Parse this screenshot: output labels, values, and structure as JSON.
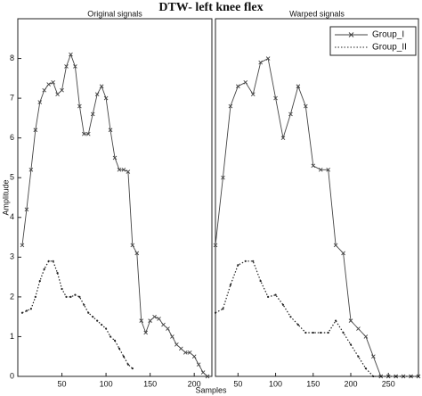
{
  "title": "DTW- left knee flex",
  "x_label": "Samples",
  "chart_data": [
    {
      "type": "line",
      "title": "Original signals",
      "ylabel": "Amplitude",
      "x": [
        5,
        10,
        15,
        20,
        25,
        30,
        35,
        40,
        45,
        50,
        55,
        60,
        65,
        70,
        75,
        80,
        85,
        90,
        95,
        100,
        105,
        110,
        115,
        120,
        125,
        130,
        135,
        140,
        145,
        150,
        155,
        160,
        165,
        170,
        175,
        180,
        185,
        190,
        195,
        200,
        205,
        210,
        215
      ],
      "xlim": [
        0,
        220
      ],
      "xticks": [
        50,
        100,
        150,
        200
      ],
      "ylim": [
        0,
        9
      ],
      "yticks": [
        0,
        1,
        2,
        3,
        4,
        5,
        6,
        7,
        8
      ],
      "series": [
        {
          "color": "#444444",
          "marker": "x",
          "dash": "solid",
          "values": [
            3.3,
            4.2,
            5.2,
            6.2,
            6.9,
            7.2,
            7.35,
            7.4,
            7.1,
            7.2,
            7.8,
            8.1,
            7.8,
            6.8,
            6.1,
            6.1,
            6.6,
            7.1,
            7.3,
            7.0,
            6.2,
            5.5,
            5.2,
            5.2,
            5.15,
            3.3,
            3.1,
            1.4,
            1.1,
            1.4,
            1.5,
            1.45,
            1.3,
            1.2,
            1.0,
            0.8,
            0.7,
            0.6,
            0.6,
            0.5,
            0.3,
            0.1,
            0.0
          ]
        },
        {
          "color": "#222222",
          "marker": "dot",
          "dash": "dotted",
          "values": [
            1.6,
            1.65,
            1.7,
            2.0,
            2.4,
            2.7,
            2.9,
            2.9,
            2.6,
            2.2,
            2.0,
            2.0,
            2.05,
            2.0,
            1.8,
            1.6,
            1.5,
            1.4,
            1.3,
            1.2,
            1.0,
            0.9,
            0.7,
            0.5,
            0.3,
            0.2,
            null,
            null,
            null,
            null,
            null,
            null,
            null,
            null,
            null,
            null,
            null,
            null,
            null,
            null,
            null,
            null,
            null
          ]
        }
      ]
    },
    {
      "type": "line",
      "title": "Warped signals",
      "legend": "upper right",
      "x": [
        20,
        30,
        40,
        50,
        60,
        70,
        80,
        90,
        100,
        110,
        120,
        130,
        140,
        150,
        160,
        170,
        180,
        190,
        200,
        210,
        220,
        230,
        240,
        250,
        260,
        270,
        280,
        290
      ],
      "xlim": [
        20,
        290
      ],
      "xticks": [
        50,
        100,
        150,
        200,
        250
      ],
      "ylim": [
        0,
        9
      ],
      "series": [
        {
          "name": "Group_I",
          "color": "#444444",
          "marker": "x",
          "dash": "solid",
          "values": [
            3.3,
            5.0,
            6.8,
            7.3,
            7.4,
            7.1,
            7.9,
            8.0,
            7.0,
            6.0,
            6.6,
            7.3,
            6.8,
            5.3,
            5.2,
            5.2,
            3.3,
            3.1,
            1.4,
            1.2,
            1.0,
            0.5,
            0.0,
            0,
            0,
            0,
            0,
            0
          ]
        },
        {
          "name": "Group_II",
          "color": "#222222",
          "marker": "dot",
          "dash": "dotted",
          "values": [
            1.6,
            1.7,
            2.3,
            2.8,
            2.9,
            2.9,
            2.4,
            2.0,
            2.05,
            1.8,
            1.5,
            1.3,
            1.1,
            1.1,
            1.1,
            1.1,
            1.4,
            1.1,
            0.8,
            0.5,
            0.2,
            0.0,
            0,
            0,
            0,
            0,
            0,
            0
          ]
        }
      ]
    }
  ]
}
